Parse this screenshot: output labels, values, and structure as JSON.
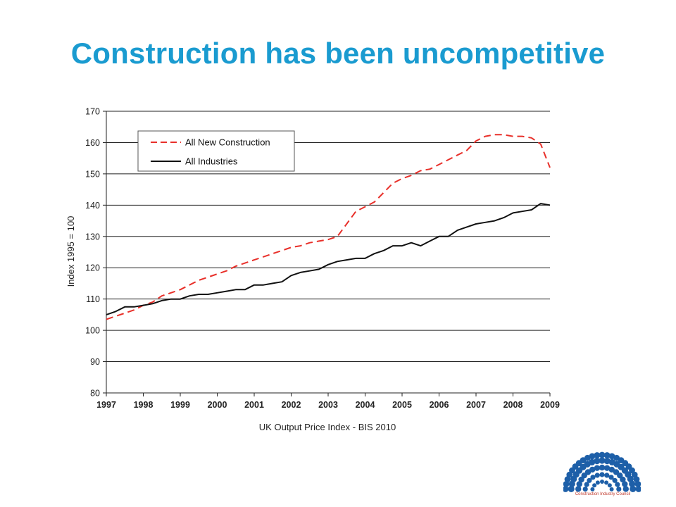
{
  "slide": {
    "title": "Construction has been uncompetitive"
  },
  "colors": {
    "title": "#1a9bd0",
    "construction": "#e8302a",
    "industries": "#111111",
    "logo": "#1d5fa8"
  },
  "logo": {
    "icon": "construction-industry-council-logo-icon",
    "caption": "Construction Industry Council"
  },
  "chart_data": {
    "type": "line",
    "xlabel": "UK Output Price Index - BIS 2010",
    "ylabel": "Index 1995 = 100",
    "xlim": [
      1997,
      2009
    ],
    "ylim": [
      80,
      170
    ],
    "yticks": [
      80,
      90,
      100,
      110,
      120,
      130,
      140,
      150,
      160,
      170
    ],
    "xticks": [
      "1997",
      "1998",
      "1999",
      "2000",
      "2001",
      "2002",
      "2003",
      "2004",
      "2005",
      "2006",
      "2007",
      "2008",
      "2009"
    ],
    "grid": "horizontal",
    "legend_position": "top-left",
    "series": [
      {
        "name": "All New Construction",
        "style": "dashed",
        "color": "#e8302a",
        "x": [
          1997.0,
          1997.25,
          1997.5,
          1997.75,
          1998.0,
          1998.25,
          1998.5,
          1998.75,
          1999.0,
          1999.25,
          1999.5,
          1999.75,
          2000.0,
          2000.25,
          2000.5,
          2000.75,
          2001.0,
          2001.25,
          2001.5,
          2001.75,
          2002.0,
          2002.25,
          2002.5,
          2002.75,
          2003.0,
          2003.25,
          2003.5,
          2003.75,
          2004.0,
          2004.25,
          2004.5,
          2004.75,
          2005.0,
          2005.25,
          2005.5,
          2005.75,
          2006.0,
          2006.25,
          2006.5,
          2006.75,
          2007.0,
          2007.25,
          2007.5,
          2007.75,
          2008.0,
          2008.25,
          2008.5,
          2008.75,
          2009.0
        ],
        "values": [
          103.5,
          104.5,
          105.5,
          106.5,
          108.0,
          109.0,
          111.0,
          112.0,
          113.0,
          114.5,
          116.0,
          117.0,
          118.0,
          119.0,
          120.5,
          121.5,
          122.5,
          123.5,
          124.5,
          125.5,
          126.5,
          127.0,
          128.0,
          128.5,
          129.0,
          130.0,
          134.0,
          138.0,
          139.5,
          141.0,
          144.0,
          147.0,
          148.5,
          149.5,
          151.0,
          151.5,
          153.0,
          154.5,
          156.0,
          157.5,
          160.5,
          162.0,
          162.5,
          162.5,
          162.0,
          162.0,
          161.5,
          159.5,
          152.0
        ]
      },
      {
        "name": "All Industries",
        "style": "solid",
        "color": "#111111",
        "x": [
          1997.0,
          1997.25,
          1997.5,
          1997.75,
          1998.0,
          1998.25,
          1998.5,
          1998.75,
          1999.0,
          1999.25,
          1999.5,
          1999.75,
          2000.0,
          2000.25,
          2000.5,
          2000.75,
          2001.0,
          2001.25,
          2001.5,
          2001.75,
          2002.0,
          2002.25,
          2002.5,
          2002.75,
          2003.0,
          2003.25,
          2003.5,
          2003.75,
          2004.0,
          2004.25,
          2004.5,
          2004.75,
          2005.0,
          2005.25,
          2005.5,
          2005.75,
          2006.0,
          2006.25,
          2006.5,
          2006.75,
          2007.0,
          2007.25,
          2007.5,
          2007.75,
          2008.0,
          2008.25,
          2008.5,
          2008.75,
          2009.0
        ],
        "values": [
          105.0,
          106.0,
          107.5,
          107.5,
          108.0,
          108.5,
          109.5,
          110.0,
          110.0,
          111.0,
          111.5,
          111.5,
          112.0,
          112.5,
          113.0,
          113.0,
          114.5,
          114.5,
          115.0,
          115.5,
          117.5,
          118.5,
          119.0,
          119.5,
          121.0,
          122.0,
          122.5,
          123.0,
          123.0,
          124.5,
          125.5,
          127.0,
          127.0,
          128.0,
          127.0,
          128.5,
          130.0,
          130.0,
          132.0,
          133.0,
          134.0,
          134.5,
          135.0,
          136.0,
          137.5,
          138.0,
          138.5,
          140.5,
          140.0
        ]
      }
    ]
  }
}
